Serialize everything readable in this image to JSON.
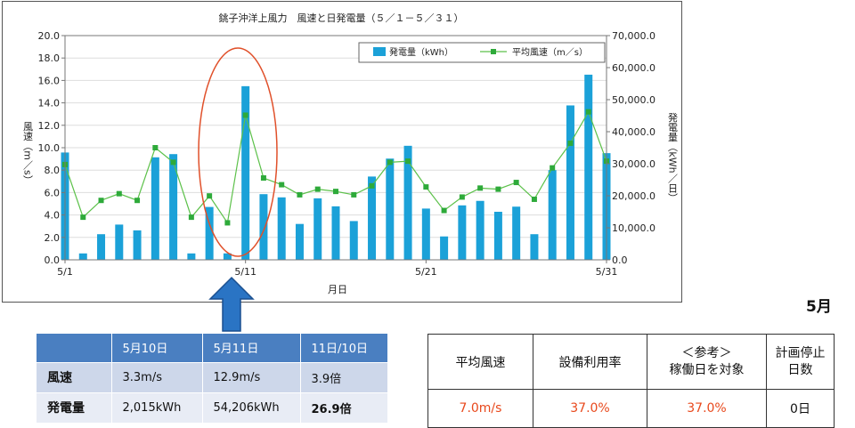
{
  "month_label": "5月",
  "chart_data": {
    "type": "bar+line",
    "title": "銚子沖洋上風力　風速と日発電量（５／１－５／３１）",
    "xlabel": "月日",
    "ylabel_left": "風速（m／s）",
    "ylabel_right": "発電量（kWh／日）",
    "ylim_left": [
      0,
      20
    ],
    "ylim_right": [
      0,
      70000
    ],
    "left_ticks": [
      "0.0",
      "2.0",
      "4.0",
      "6.0",
      "8.0",
      "10.0",
      "12.0",
      "14.0",
      "16.0",
      "18.0",
      "20.0"
    ],
    "right_ticks": [
      "0.0",
      "10,000.0",
      "20,000.0",
      "30,000.0",
      "40,000.0",
      "50,000.0",
      "60,000.0",
      "70,000.0"
    ],
    "x_tick_labels": [
      {
        "day": 1,
        "label": "5/1"
      },
      {
        "day": 11,
        "label": "5/11"
      },
      {
        "day": 21,
        "label": "5/21"
      },
      {
        "day": 31,
        "label": "5/31"
      }
    ],
    "legend_position": "top-right",
    "bar_color": "#1ba1d8",
    "line_color": "#5cc14a",
    "highlight_color": "#e0502a",
    "highlight_days": [
      10,
      11
    ],
    "series": [
      {
        "name": "発電量（kWh）",
        "axis": "right",
        "kind": "bar",
        "values": [
          33500,
          2000,
          8000,
          11000,
          9200,
          32000,
          33000,
          2000,
          16500,
          2015,
          54206,
          20500,
          19500,
          11200,
          19200,
          16700,
          12100,
          26000,
          31600,
          35600,
          16000,
          7300,
          17000,
          18400,
          15000,
          16600,
          8000,
          28000,
          48200,
          57800,
          33300
        ]
      },
      {
        "name": "平均風速（m／s）",
        "axis": "left",
        "kind": "line",
        "values": [
          8.5,
          3.8,
          5.3,
          5.9,
          5.3,
          10.0,
          8.7,
          3.8,
          5.7,
          3.3,
          12.9,
          7.3,
          6.7,
          5.8,
          6.3,
          6.1,
          5.8,
          6.6,
          8.7,
          8.8,
          6.5,
          4.4,
          5.6,
          6.4,
          6.3,
          6.9,
          5.4,
          8.2,
          10.4,
          13.2,
          8.8
        ]
      }
    ]
  },
  "comparison_table": {
    "headers": [
      "",
      "5月10日",
      "5月11日",
      "11日/10日"
    ],
    "rows": [
      {
        "label": "風速",
        "day10": "3.3m/s",
        "day11": "12.9m/s",
        "ratio": "3.9倍"
      },
      {
        "label": "発電量",
        "day10": "2,015kWh",
        "day11": "54,206kWh",
        "ratio": "26.9倍"
      }
    ]
  },
  "stats_table": {
    "headers": [
      "平均風速",
      "設備利用率",
      "＜参考＞\n稼働日を対象",
      "計画停止\n日数"
    ],
    "values": [
      "7.0m/s",
      "37.0%",
      "37.0%",
      "0日"
    ]
  }
}
